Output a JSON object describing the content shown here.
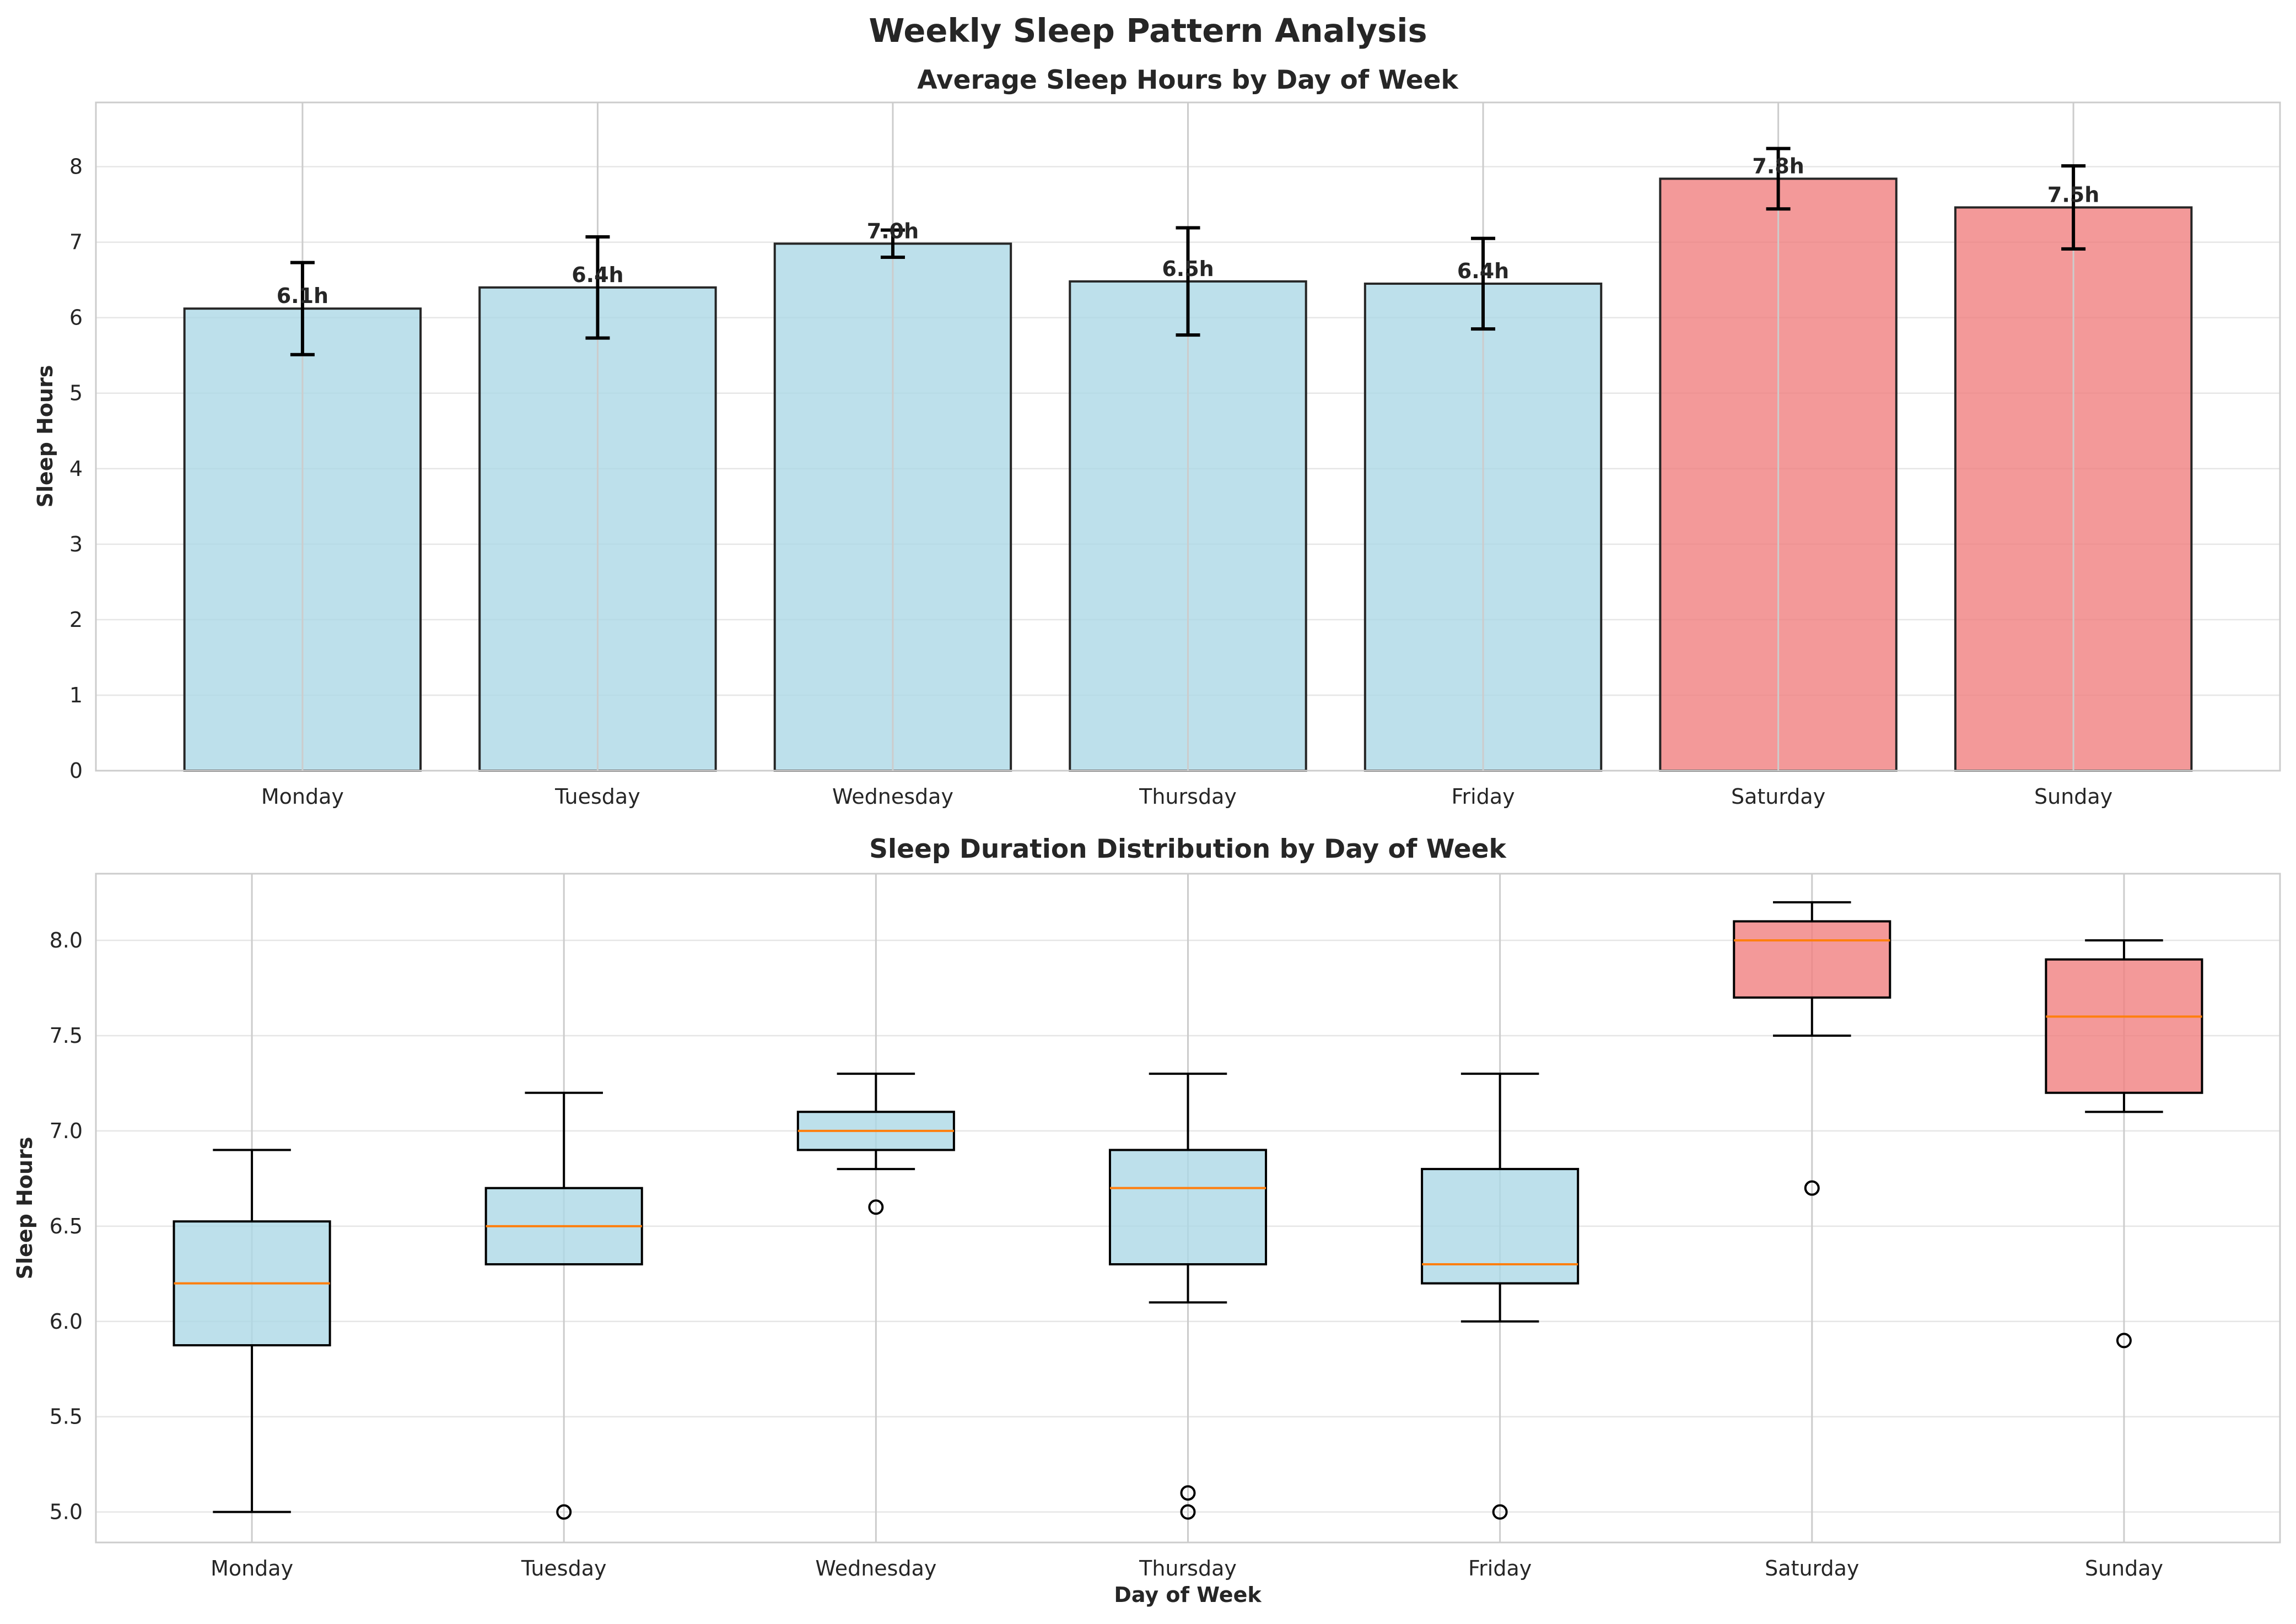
{
  "suptitle": "Weekly Sleep Pattern Analysis",
  "colors": {
    "weekday": "#add8e6",
    "weekend": "#f08080",
    "median": "#ff7f0e"
  },
  "chart_data": [
    {
      "type": "bar",
      "title": "Average Sleep Hours by Day of Week",
      "xlabel": "",
      "ylabel": "Sleep Hours",
      "ylim": [
        0,
        8.85
      ],
      "yticks": [
        0,
        1,
        2,
        3,
        4,
        5,
        6,
        7,
        8
      ],
      "grid": true,
      "categories": [
        "Monday",
        "Tuesday",
        "Wednesday",
        "Thursday",
        "Friday",
        "Saturday",
        "Sunday"
      ],
      "values": [
        6.12,
        6.4,
        6.98,
        6.48,
        6.45,
        7.84,
        7.46
      ],
      "errors": [
        0.61,
        0.67,
        0.18,
        0.71,
        0.6,
        0.4,
        0.55
      ],
      "labels": [
        "6.1h",
        "6.4h",
        "7.0h",
        "6.5h",
        "6.4h",
        "7.8h",
        "7.5h"
      ],
      "weekend": [
        false,
        false,
        false,
        false,
        false,
        true,
        true
      ]
    },
    {
      "type": "box",
      "title": "Sleep Duration Distribution by Day of Week",
      "xlabel": "Day of Week",
      "ylabel": "Sleep Hours",
      "ylim": [
        4.84,
        8.35
      ],
      "yticks": [
        "5.0",
        "5.5",
        "6.0",
        "6.5",
        "7.0",
        "7.5",
        "8.0"
      ],
      "grid": true,
      "categories": [
        "Monday",
        "Tuesday",
        "Wednesday",
        "Thursday",
        "Friday",
        "Saturday",
        "Sunday"
      ],
      "boxes": [
        {
          "whislo": 5.0,
          "q1": 5.875,
          "med": 6.2,
          "q3": 6.525,
          "whishi": 6.9,
          "fliers": []
        },
        {
          "whislo": 6.3,
          "q1": 6.3,
          "med": 6.5,
          "q3": 6.7,
          "whishi": 7.2,
          "fliers": [
            5.0
          ]
        },
        {
          "whislo": 6.8,
          "q1": 6.9,
          "med": 7.0,
          "q3": 7.1,
          "whishi": 7.3,
          "fliers": [
            6.6
          ]
        },
        {
          "whislo": 6.1,
          "q1": 6.3,
          "med": 6.7,
          "q3": 6.9,
          "whishi": 7.3,
          "fliers": [
            5.1,
            5.0
          ]
        },
        {
          "whislo": 6.0,
          "q1": 6.2,
          "med": 6.3,
          "q3": 6.8,
          "whishi": 7.3,
          "fliers": [
            5.0
          ]
        },
        {
          "whislo": 7.5,
          "q1": 7.7,
          "med": 8.0,
          "q3": 8.1,
          "whishi": 8.2,
          "fliers": [
            6.7
          ]
        },
        {
          "whislo": 7.1,
          "q1": 7.2,
          "med": 7.6,
          "q3": 7.9,
          "whishi": 8.0,
          "fliers": [
            5.9
          ]
        }
      ],
      "weekend": [
        false,
        false,
        false,
        false,
        false,
        true,
        true
      ]
    }
  ]
}
